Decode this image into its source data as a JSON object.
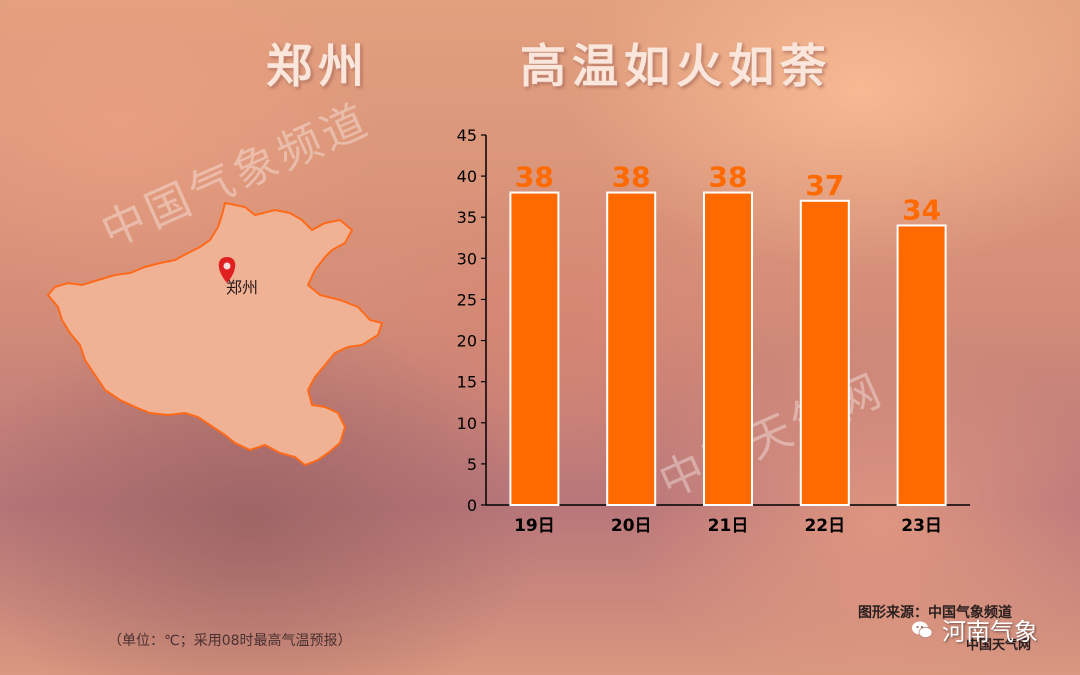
{
  "header": {
    "city": "郑州",
    "headline": "高温如火如荼"
  },
  "watermarks": {
    "top_left": "中国气象频道",
    "chart": "中国天气网"
  },
  "map": {
    "marker_label": "郑州",
    "fill": "#f0b295",
    "stroke": "#ff6a1a",
    "marker_color": "#e02020"
  },
  "footnote": "（单位：℃；采用08时最高气温预报）",
  "source": {
    "line1": "图形来源：中国气象频道",
    "line2": "中国天气网"
  },
  "brand": {
    "label": "河南气象",
    "icon": "wechat-icon"
  },
  "colors": {
    "bar": "#ff6a00",
    "bar_border": "#ffffff",
    "value_label": "#ff6a00",
    "axis": "#000000"
  },
  "chart_data": {
    "type": "bar",
    "categories": [
      "19日",
      "20日",
      "21日",
      "22日",
      "23日"
    ],
    "values": [
      38,
      38,
      38,
      37,
      34
    ],
    "ylim": [
      0,
      45
    ],
    "yticks": [
      0,
      5,
      10,
      15,
      20,
      25,
      30,
      35,
      40,
      45
    ],
    "data_labels": [
      "38",
      "38",
      "38",
      "37",
      "34"
    ],
    "title": "",
    "xlabel": "",
    "ylabel": "",
    "grid": false
  }
}
